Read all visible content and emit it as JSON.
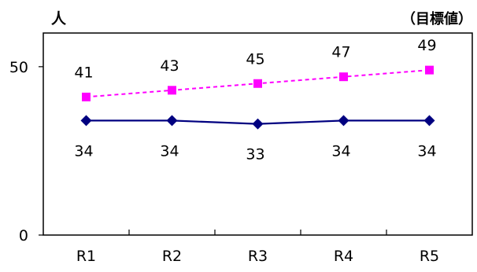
{
  "chart_data": {
    "type": "line",
    "categories": [
      "R1",
      "R2",
      "R3",
      "R4",
      "R5"
    ],
    "series": [
      {
        "values": [
          41,
          43,
          45,
          47,
          49
        ],
        "color": "#ff00ff",
        "line_style": "dashed",
        "marker": "square"
      },
      {
        "values": [
          34,
          34,
          33,
          34,
          34
        ],
        "color": "#000080",
        "line_style": "solid",
        "marker": "diamond"
      }
    ],
    "y_unit_label": "人",
    "top_right_label": "（目標値）",
    "ylim": [
      0,
      60
    ],
    "yticks": [
      0,
      50
    ],
    "grid": false,
    "data_labels": true
  }
}
